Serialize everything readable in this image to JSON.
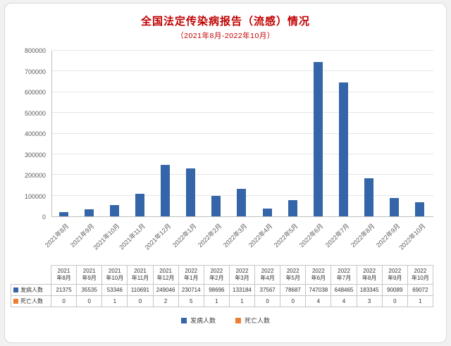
{
  "title": "全国法定传染病报告（流感）情况",
  "subtitle": "（2021年8月-2022年10月）",
  "colors": {
    "title": "#c00000",
    "cases_bar": "#3465a8",
    "deaths_bar": "#ed7d31",
    "grid": "#e5e5e5",
    "axis": "#bfbfbf"
  },
  "chart_data": {
    "type": "bar",
    "title": "全国法定传染病报告（流感）情况",
    "subtitle": "（2021年8月-2022年10月）",
    "categories": [
      "2021年8月",
      "2021年9月",
      "2021年10月",
      "2021年11月",
      "2021年12月",
      "2022年1月",
      "2022年2月",
      "2022年3月",
      "2022年4月",
      "2022年5月",
      "2022年6月",
      "2022年7月",
      "2022年8月",
      "2022年9月",
      "2022年10月"
    ],
    "series": [
      {
        "name": "发病人数",
        "color": "#3465a8",
        "values": [
          21375,
          35535,
          53346,
          110691,
          249046,
          230714,
          98696,
          133184,
          37567,
          78687,
          747038,
          648465,
          183345,
          90089,
          69072
        ]
      },
      {
        "name": "死亡人数",
        "color": "#ed7d31",
        "values": [
          0,
          0,
          1,
          0,
          2,
          5,
          1,
          1,
          0,
          0,
          4,
          4,
          3,
          0,
          1
        ]
      }
    ],
    "xlabel": "",
    "ylabel": "",
    "ylim": [
      0,
      800000
    ],
    "ytick_step": 100000,
    "ytick_labels": [
      "0",
      "100000",
      "200000",
      "300000",
      "400000",
      "500000",
      "600000",
      "700000",
      "800000"
    ],
    "grid": true,
    "legend_position": "bottom",
    "has_data_table": true
  },
  "legend": {
    "items": [
      {
        "label": "发病人数",
        "color": "#3465a8"
      },
      {
        "label": "死亡人数",
        "color": "#ed7d31"
      }
    ]
  }
}
